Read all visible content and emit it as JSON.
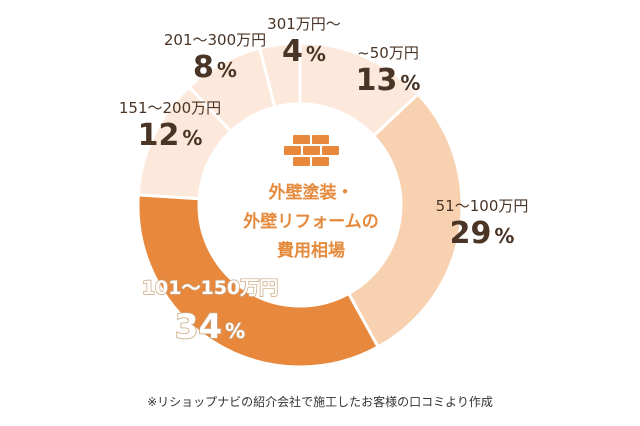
{
  "chart_data": {
    "type": "pie",
    "center_title": [
      "外壁塗装・",
      "外壁リフォームの",
      "費用相場"
    ],
    "categories": [
      "~50万円",
      "51〜100万円",
      "101〜150万円",
      "151〜200万円",
      "201〜300万円",
      "301万円〜"
    ],
    "values": [
      13,
      29,
      34,
      12,
      8,
      4
    ],
    "value_labels": [
      "13",
      "29",
      "34",
      "12",
      "8",
      "4"
    ],
    "unit": "%",
    "colors": [
      "#fde9db",
      "#f7d1b0",
      "#e8883d",
      "#fde9db",
      "#fde9db",
      "#fde9db"
    ],
    "highlight_index": 2,
    "center_icon": "brick-wall-icon"
  },
  "footnote": "※リショップナビの紹介会社で施工したお客様の口コミより作成"
}
